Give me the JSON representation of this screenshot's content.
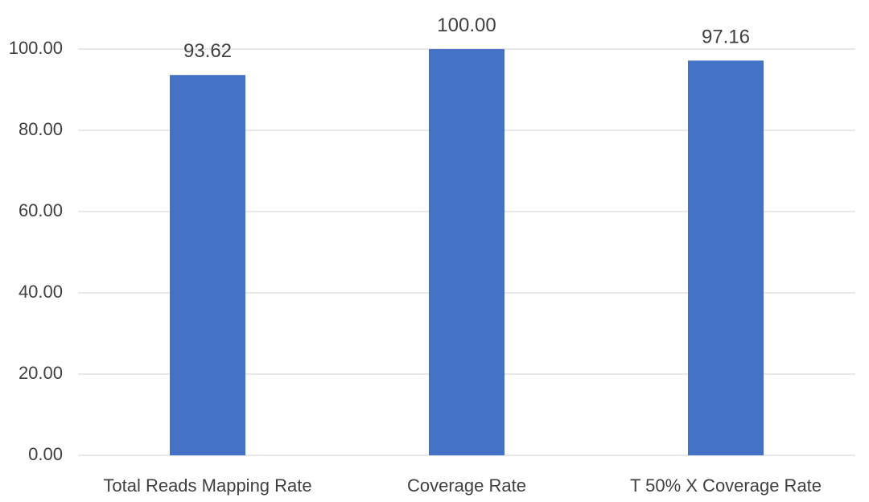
{
  "chart_data": {
    "type": "bar",
    "title": "",
    "xlabel": "",
    "ylabel": "",
    "categories": [
      "Total Reads Mapping Rate",
      "Coverage Rate",
      "T 50% X Coverage Rate"
    ],
    "values": [
      93.62,
      100.0,
      97.16
    ],
    "data_labels": [
      "93.62",
      "100.00",
      "97.16"
    ],
    "ylim": [
      0,
      100
    ],
    "yticks": [
      0,
      20,
      40,
      60,
      80,
      100
    ],
    "ytick_labels": [
      "0.00",
      "20.00",
      "40.00",
      "60.00",
      "80.00",
      "100.00"
    ],
    "grid": true,
    "legend": "none",
    "colors": {
      "bar": "#4472C4",
      "grid": "#D9D9D9",
      "text": "#404040"
    }
  }
}
